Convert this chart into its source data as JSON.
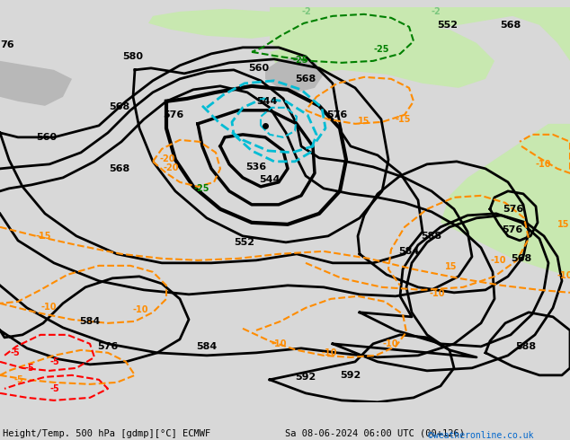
{
  "title_left": "Height/Temp. 500 hPa [gdmp][°C] ECMWF",
  "title_right": "Sa 08-06-2024 06:00 UTC (00+126)",
  "credit": "©weatheronline.co.uk",
  "bg_color": "#d8d8d8",
  "land_color": "#e8e8e8",
  "green_color": "#c8e8b0",
  "figwidth": 6.34,
  "figheight": 4.9,
  "dpi": 100
}
